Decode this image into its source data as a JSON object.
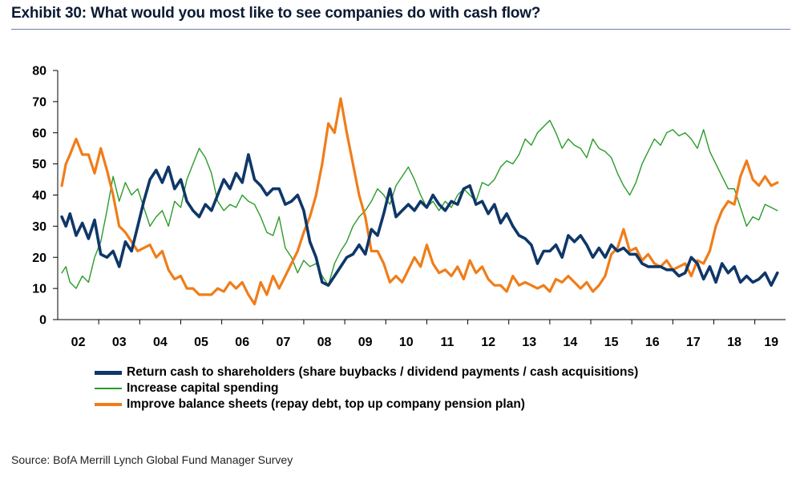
{
  "title": "Exhibit 30: What would you most like to see companies do with cash flow?",
  "source": "Source: BofA Merrill Lynch Global Fund Manager Survey",
  "chart_data": {
    "type": "line",
    "ylim": [
      0,
      80
    ],
    "yticks": [
      0,
      10,
      20,
      30,
      40,
      50,
      60,
      70,
      80
    ],
    "xlim": [
      2002.0,
      2019.75
    ],
    "xticks": [
      {
        "label": "02",
        "x": 2002.5
      },
      {
        "label": "03",
        "x": 2003.5
      },
      {
        "label": "04",
        "x": 2004.5
      },
      {
        "label": "05",
        "x": 2005.5
      },
      {
        "label": "06",
        "x": 2006.5
      },
      {
        "label": "07",
        "x": 2007.5
      },
      {
        "label": "08",
        "x": 2008.5
      },
      {
        "label": "09",
        "x": 2009.5
      },
      {
        "label": "10",
        "x": 2010.5
      },
      {
        "label": "11",
        "x": 2011.5
      },
      {
        "label": "12",
        "x": 2012.5
      },
      {
        "label": "13",
        "x": 2013.5
      },
      {
        "label": "14",
        "x": 2014.5
      },
      {
        "label": "15",
        "x": 2015.5
      },
      {
        "label": "16",
        "x": 2016.5
      },
      {
        "label": "17",
        "x": 2017.5
      },
      {
        "label": "18",
        "x": 2018.5
      },
      {
        "label": "19",
        "x": 2019.4
      }
    ],
    "grid": false,
    "legend_position": "bottom",
    "series": [
      {
        "name": "Return cash to shareholders (share buybacks / dividend payments / cash acquisitions)",
        "color": "#0f3768",
        "x": [
          2002.1,
          2002.2,
          2002.3,
          2002.45,
          2002.6,
          2002.75,
          2002.9,
          2003.05,
          2003.2,
          2003.35,
          2003.5,
          2003.65,
          2003.8,
          2003.95,
          2004.1,
          2004.25,
          2004.4,
          2004.55,
          2004.7,
          2004.85,
          2005.0,
          2005.15,
          2005.3,
          2005.45,
          2005.6,
          2005.75,
          2005.9,
          2006.05,
          2006.2,
          2006.35,
          2006.5,
          2006.65,
          2006.8,
          2006.95,
          2007.1,
          2007.25,
          2007.4,
          2007.55,
          2007.7,
          2007.85,
          2008.0,
          2008.15,
          2008.3,
          2008.45,
          2008.6,
          2008.75,
          2008.9,
          2009.05,
          2009.2,
          2009.35,
          2009.5,
          2009.65,
          2009.8,
          2009.95,
          2010.1,
          2010.25,
          2010.4,
          2010.55,
          2010.7,
          2010.85,
          2011.0,
          2011.15,
          2011.3,
          2011.45,
          2011.6,
          2011.75,
          2011.9,
          2012.05,
          2012.2,
          2012.35,
          2012.5,
          2012.65,
          2012.8,
          2012.95,
          2013.1,
          2013.25,
          2013.4,
          2013.55,
          2013.7,
          2013.85,
          2014.0,
          2014.15,
          2014.3,
          2014.45,
          2014.6,
          2014.75,
          2014.9,
          2015.05,
          2015.2,
          2015.35,
          2015.5,
          2015.65,
          2015.8,
          2015.95,
          2016.1,
          2016.25,
          2016.4,
          2016.55,
          2016.7,
          2016.85,
          2017.0,
          2017.15,
          2017.3,
          2017.45,
          2017.6,
          2017.75,
          2017.9,
          2018.05,
          2018.2,
          2018.35,
          2018.5,
          2018.65,
          2018.8,
          2018.95,
          2019.1,
          2019.25,
          2019.4,
          2019.55
        ],
        "y": [
          33,
          30,
          34,
          27,
          31,
          26,
          32,
          21,
          20,
          22,
          17,
          25,
          22,
          30,
          38,
          45,
          48,
          44,
          49,
          42,
          45,
          38,
          35,
          33,
          37,
          35,
          40,
          45,
          42,
          47,
          44,
          53,
          45,
          43,
          40,
          42,
          42,
          37,
          38,
          40,
          35,
          25,
          20,
          12,
          11,
          14,
          17,
          20,
          21,
          24,
          21,
          29,
          27,
          34,
          42,
          33,
          35,
          37,
          35,
          38,
          36,
          40,
          37,
          35,
          38,
          37,
          42,
          43,
          37,
          38,
          34,
          37,
          31,
          34,
          30,
          27,
          26,
          24,
          18,
          22,
          22,
          24,
          20,
          27,
          25,
          27,
          24,
          20,
          23,
          20,
          24,
          22,
          23,
          21,
          21,
          18,
          17,
          17,
          17,
          16,
          16,
          14,
          15,
          20,
          18,
          13,
          17,
          12,
          18,
          15,
          17,
          12,
          14,
          12,
          13,
          15,
          11,
          15
        ]
      },
      {
        "name": "Increase capital spending",
        "color": "#2a9b2a",
        "x": [
          2002.1,
          2002.2,
          2002.3,
          2002.45,
          2002.6,
          2002.75,
          2002.9,
          2003.05,
          2003.2,
          2003.35,
          2003.5,
          2003.65,
          2003.8,
          2003.95,
          2004.1,
          2004.25,
          2004.4,
          2004.55,
          2004.7,
          2004.85,
          2005.0,
          2005.15,
          2005.3,
          2005.45,
          2005.6,
          2005.75,
          2005.9,
          2006.05,
          2006.2,
          2006.35,
          2006.5,
          2006.65,
          2006.8,
          2006.95,
          2007.1,
          2007.25,
          2007.4,
          2007.55,
          2007.7,
          2007.85,
          2008.0,
          2008.15,
          2008.3,
          2008.45,
          2008.6,
          2008.75,
          2008.9,
          2009.05,
          2009.2,
          2009.35,
          2009.5,
          2009.65,
          2009.8,
          2009.95,
          2010.1,
          2010.25,
          2010.4,
          2010.55,
          2010.7,
          2010.85,
          2011.0,
          2011.15,
          2011.3,
          2011.45,
          2011.6,
          2011.75,
          2011.9,
          2012.05,
          2012.2,
          2012.35,
          2012.5,
          2012.65,
          2012.8,
          2012.95,
          2013.1,
          2013.25,
          2013.4,
          2013.55,
          2013.7,
          2013.85,
          2014.0,
          2014.15,
          2014.3,
          2014.45,
          2014.6,
          2014.75,
          2014.9,
          2015.05,
          2015.2,
          2015.35,
          2015.5,
          2015.65,
          2015.8,
          2015.95,
          2016.1,
          2016.25,
          2016.4,
          2016.55,
          2016.7,
          2016.85,
          2017.0,
          2017.15,
          2017.3,
          2017.45,
          2017.6,
          2017.75,
          2017.9,
          2018.05,
          2018.2,
          2018.35,
          2018.5,
          2018.65,
          2018.8,
          2018.95,
          2019.1,
          2019.25,
          2019.4,
          2019.55
        ],
        "y": [
          15,
          17,
          12,
          10,
          14,
          12,
          20,
          25,
          35,
          46,
          38,
          44,
          40,
          42,
          36,
          30,
          33,
          35,
          30,
          38,
          36,
          45,
          50,
          55,
          52,
          47,
          38,
          35,
          37,
          36,
          40,
          38,
          37,
          33,
          28,
          27,
          33,
          23,
          20,
          15,
          19,
          17,
          18,
          14,
          11,
          18,
          22,
          25,
          30,
          33,
          35,
          38,
          42,
          40,
          37,
          43,
          46,
          49,
          45,
          40,
          36,
          38,
          35,
          38,
          36,
          40,
          42,
          40,
          38,
          44,
          43,
          45,
          49,
          51,
          50,
          53,
          58,
          56,
          60,
          62,
          64,
          60,
          55,
          58,
          56,
          55,
          52,
          58,
          55,
          54,
          52,
          47,
          43,
          40,
          44,
          50,
          54,
          58,
          56,
          60,
          61,
          59,
          60,
          58,
          55,
          61,
          54,
          50,
          46,
          42,
          42,
          36,
          30,
          33,
          32,
          37,
          36,
          35
        ]
      },
      {
        "name": "Improve balance sheets (repay debt, top up company pension plan)",
        "color": "#f07d1a",
        "x": [
          2002.1,
          2002.2,
          2002.3,
          2002.45,
          2002.6,
          2002.75,
          2002.9,
          2003.05,
          2003.2,
          2003.35,
          2003.5,
          2003.65,
          2003.8,
          2003.95,
          2004.1,
          2004.25,
          2004.4,
          2004.55,
          2004.7,
          2004.85,
          2005.0,
          2005.15,
          2005.3,
          2005.45,
          2005.6,
          2005.75,
          2005.9,
          2006.05,
          2006.2,
          2006.35,
          2006.5,
          2006.65,
          2006.8,
          2006.95,
          2007.1,
          2007.25,
          2007.4,
          2007.55,
          2007.7,
          2007.85,
          2008.0,
          2008.15,
          2008.3,
          2008.45,
          2008.6,
          2008.75,
          2008.9,
          2009.05,
          2009.2,
          2009.35,
          2009.5,
          2009.65,
          2009.8,
          2009.95,
          2010.1,
          2010.25,
          2010.4,
          2010.55,
          2010.7,
          2010.85,
          2011.0,
          2011.15,
          2011.3,
          2011.45,
          2011.6,
          2011.75,
          2011.9,
          2012.05,
          2012.2,
          2012.35,
          2012.5,
          2012.65,
          2012.8,
          2012.95,
          2013.1,
          2013.25,
          2013.4,
          2013.55,
          2013.7,
          2013.85,
          2014.0,
          2014.15,
          2014.3,
          2014.45,
          2014.6,
          2014.75,
          2014.9,
          2015.05,
          2015.2,
          2015.35,
          2015.5,
          2015.65,
          2015.8,
          2015.95,
          2016.1,
          2016.25,
          2016.4,
          2016.55,
          2016.7,
          2016.85,
          2017.0,
          2017.15,
          2017.3,
          2017.45,
          2017.6,
          2017.75,
          2017.9,
          2018.05,
          2018.2,
          2018.35,
          2018.5,
          2018.65,
          2018.8,
          2018.95,
          2019.1,
          2019.25,
          2019.4,
          2019.55
        ],
        "y": [
          43,
          50,
          53,
          58,
          53,
          53,
          47,
          55,
          48,
          40,
          30,
          28,
          25,
          22,
          23,
          24,
          20,
          22,
          16,
          13,
          14,
          10,
          10,
          8,
          8,
          8,
          10,
          9,
          12,
          10,
          12,
          8,
          5,
          12,
          8,
          14,
          10,
          14,
          18,
          22,
          28,
          33,
          40,
          50,
          63,
          60,
          71,
          60,
          50,
          40,
          33,
          22,
          22,
          18,
          12,
          14,
          12,
          16,
          20,
          17,
          24,
          18,
          15,
          16,
          14,
          17,
          13,
          19,
          15,
          17,
          13,
          11,
          11,
          9,
          14,
          11,
          12,
          11,
          10,
          11,
          9,
          13,
          12,
          14,
          12,
          10,
          12,
          9,
          11,
          14,
          21,
          23,
          29,
          22,
          23,
          19,
          21,
          18,
          17,
          19,
          16,
          17,
          18,
          14,
          19,
          18,
          22,
          30,
          35,
          38,
          37,
          46,
          51,
          45,
          43,
          46,
          43,
          44
        ]
      }
    ]
  }
}
